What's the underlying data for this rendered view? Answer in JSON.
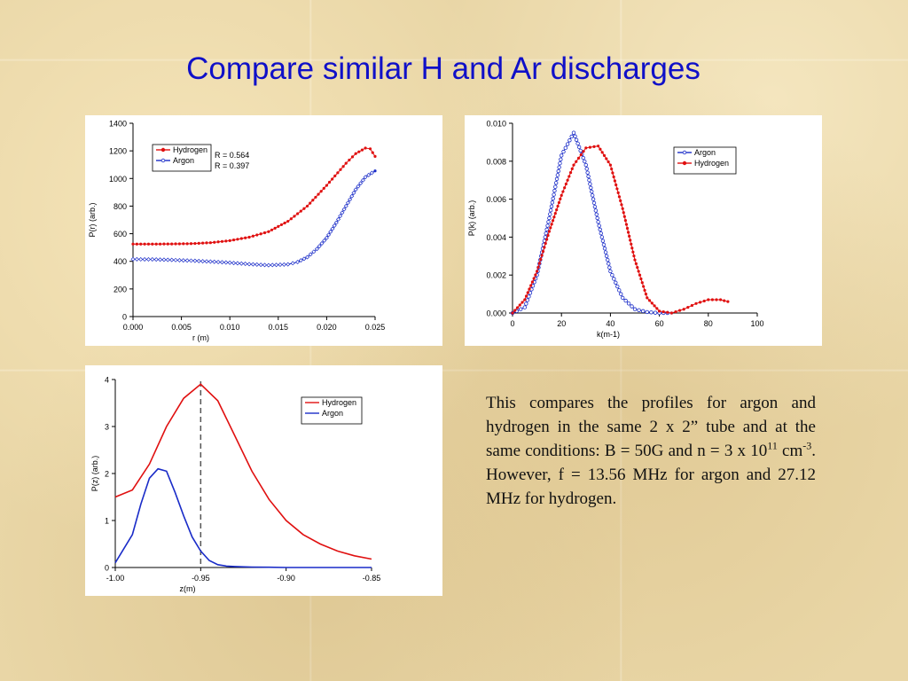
{
  "slide": {
    "title": "Compare similar H and Ar discharges",
    "caption": {
      "line1": "This compares the profiles for argon and hydrogen in the same 2 x 2” tube and at the same conditions: B = 50G and n = 3 x 10",
      "exp1": "11",
      "line2": " cm",
      "exp2": "-3",
      "line3": ".  However, f = 13.56 MHz for argon and 27.12 MHz for hydrogen."
    }
  },
  "colors": {
    "hydrogen": "#e01010",
    "argon": "#1a2cc8",
    "axis": "#000000",
    "title": "#1010c8"
  },
  "chart_data": [
    {
      "id": "radial",
      "type": "scatter",
      "xlabel": "r (m)",
      "ylabel": "P(r) (arb.)",
      "xlim": [
        0,
        0.025
      ],
      "ylim": [
        0,
        1400
      ],
      "xticks": [
        "0.000",
        "0.005",
        "0.010",
        "0.015",
        "0.020",
        "0.025"
      ],
      "yticks": [
        "0",
        "200",
        "400",
        "600",
        "800",
        "1000",
        "1200",
        "1400"
      ],
      "legend_position": "top-left",
      "annotations": [
        "R = 0.564",
        "R = 0.397"
      ],
      "series": [
        {
          "name": "Hydrogen",
          "color": "#e01010",
          "marker": "filled-circle",
          "x": [
            0.0,
            0.002,
            0.004,
            0.006,
            0.008,
            0.01,
            0.012,
            0.014,
            0.016,
            0.018,
            0.02,
            0.022,
            0.023,
            0.024,
            0.0245,
            0.025
          ],
          "y": [
            525,
            525,
            526,
            528,
            535,
            550,
            575,
            615,
            690,
            800,
            950,
            1110,
            1180,
            1220,
            1215,
            1160
          ]
        },
        {
          "name": "Argon",
          "color": "#1a2cc8",
          "marker": "open-diamond",
          "x": [
            0.0,
            0.002,
            0.004,
            0.006,
            0.008,
            0.01,
            0.012,
            0.014,
            0.016,
            0.017,
            0.018,
            0.019,
            0.02,
            0.021,
            0.022,
            0.023,
            0.024,
            0.025
          ],
          "y": [
            415,
            414,
            410,
            405,
            398,
            390,
            380,
            372,
            378,
            395,
            430,
            490,
            570,
            680,
            800,
            920,
            1010,
            1055
          ]
        }
      ]
    },
    {
      "id": "k-spectrum",
      "type": "scatter",
      "xlabel": "k(m-1)",
      "ylabel": "P(k) (arb.)",
      "xlim": [
        0,
        100
      ],
      "ylim": [
        0,
        0.01
      ],
      "xticks": [
        "0",
        "20",
        "40",
        "60",
        "80",
        "100"
      ],
      "yticks": [
        "0.000",
        "0.002",
        "0.004",
        "0.006",
        "0.008",
        "0.010"
      ],
      "legend_position": "top-right",
      "series": [
        {
          "name": "Argon",
          "color": "#1a2cc8",
          "marker": "open-circle",
          "x": [
            0,
            5,
            10,
            15,
            20,
            25,
            30,
            35,
            40,
            45,
            50,
            55,
            60,
            65
          ],
          "y": [
            0.0,
            0.0003,
            0.002,
            0.005,
            0.0083,
            0.0095,
            0.0078,
            0.0048,
            0.0022,
            0.0008,
            0.0002,
            5e-05,
            0.0,
            0.0
          ]
        },
        {
          "name": "Hydrogen",
          "color": "#e01010",
          "marker": "filled-circle",
          "x": [
            0,
            5,
            10,
            15,
            20,
            25,
            30,
            35,
            40,
            45,
            50,
            55,
            60,
            65,
            70,
            75,
            80,
            85,
            88
          ],
          "y": [
            0.0,
            0.0007,
            0.0022,
            0.0043,
            0.0062,
            0.0078,
            0.0087,
            0.0088,
            0.0078,
            0.0055,
            0.0028,
            0.0008,
            0.0001,
            0.0,
            0.0002,
            0.0005,
            0.0007,
            0.0007,
            0.0006
          ]
        }
      ]
    },
    {
      "id": "axial",
      "type": "line",
      "xlabel": "z(m)",
      "ylabel": "P(z) (arb.)",
      "xlim": [
        -1.0,
        -0.85
      ],
      "ylim": [
        0,
        4
      ],
      "xticks": [
        "-1.00",
        "-0.95",
        "-0.90",
        "-0.85"
      ],
      "yticks": [
        "0",
        "1",
        "2",
        "3",
        "4"
      ],
      "legend_position": "top-right",
      "vline_x": -0.95,
      "series": [
        {
          "name": "Hydrogen",
          "color": "#e01010",
          "x": [
            -1.0,
            -0.99,
            -0.98,
            -0.97,
            -0.96,
            -0.95,
            -0.94,
            -0.93,
            -0.92,
            -0.91,
            -0.9,
            -0.89,
            -0.88,
            -0.87,
            -0.86,
            -0.85
          ],
          "y": [
            1.5,
            1.65,
            2.2,
            3.0,
            3.6,
            3.9,
            3.55,
            2.8,
            2.05,
            1.45,
            1.0,
            0.7,
            0.5,
            0.35,
            0.25,
            0.18
          ]
        },
        {
          "name": "Argon",
          "color": "#1a2cc8",
          "x": [
            -1.0,
            -0.99,
            -0.985,
            -0.98,
            -0.975,
            -0.97,
            -0.965,
            -0.96,
            -0.955,
            -0.95,
            -0.945,
            -0.94,
            -0.935,
            -0.93,
            -0.92,
            -0.91,
            -0.9,
            -0.85
          ],
          "y": [
            0.1,
            0.7,
            1.35,
            1.9,
            2.1,
            2.05,
            1.6,
            1.1,
            0.65,
            0.35,
            0.15,
            0.06,
            0.03,
            0.02,
            0.01,
            0.005,
            0.0,
            0.0
          ]
        }
      ]
    }
  ]
}
